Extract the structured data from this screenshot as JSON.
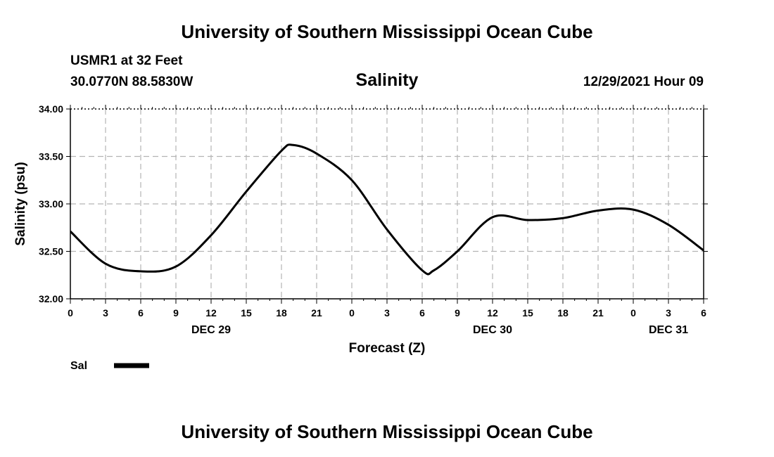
{
  "header": {
    "title": "University of Southern Mississippi Ocean Cube",
    "station": "USMR1 at 32 Feet",
    "coords": "30.0770N  88.5830W",
    "chart_title": "Salinity",
    "datetime": "12/29/2021 Hour 09"
  },
  "footer": {
    "title": "University of Southern Mississippi Ocean Cube"
  },
  "chart_data": {
    "type": "line",
    "title": "Salinity",
    "xlabel": "Forecast (Z)",
    "ylabel": "Salinity (psu)",
    "xlim": [
      0,
      54
    ],
    "ylim": [
      32.0,
      34.0
    ],
    "y_ticks": [
      "32.00",
      "32.50",
      "33.00",
      "33.50",
      "34.00"
    ],
    "x_tick_labels": [
      "0",
      "3",
      "6",
      "9",
      "12",
      "15",
      "18",
      "21",
      "0",
      "3",
      "6",
      "9",
      "12",
      "15",
      "18",
      "21",
      "0",
      "3",
      "6"
    ],
    "date_labels": [
      {
        "hour": 12,
        "label": "DEC 29"
      },
      {
        "hour": 36,
        "label": "DEC 30"
      },
      {
        "hour": 51,
        "label": "DEC 31"
      }
    ],
    "grid": true,
    "legend": {
      "placement": "bottom-left",
      "label": "Sal"
    },
    "series": [
      {
        "name": "Sal",
        "x": [
          0,
          3,
          6,
          9,
          12,
          15,
          18,
          19,
          21,
          24,
          27,
          30,
          31,
          33,
          36,
          39,
          42,
          45,
          48,
          51,
          54
        ],
        "y": [
          32.71,
          32.37,
          32.29,
          32.34,
          32.67,
          33.13,
          33.56,
          33.62,
          33.53,
          33.25,
          32.73,
          32.3,
          32.3,
          32.5,
          32.86,
          32.83,
          32.85,
          32.93,
          32.94,
          32.78,
          32.51
        ]
      }
    ]
  }
}
